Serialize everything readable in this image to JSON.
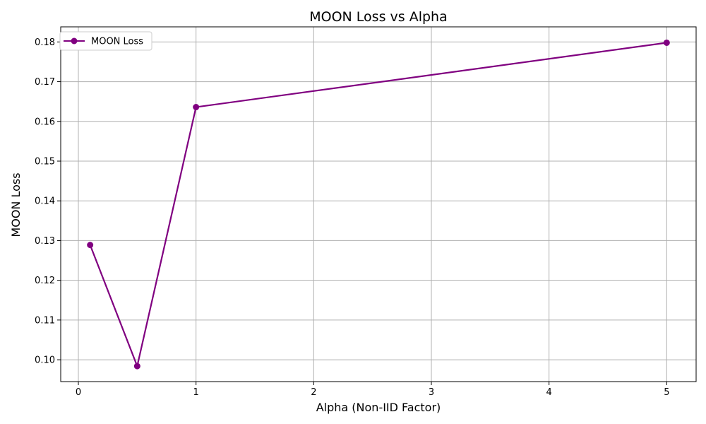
{
  "chart_data": {
    "type": "line",
    "title": "MOON Loss vs Alpha",
    "xlabel": "Alpha (Non-IID Factor)",
    "ylabel": "MOON Loss",
    "xlim": [
      -0.15,
      5.25
    ],
    "ylim": [
      0.0945,
      0.1838
    ],
    "x_ticks": [
      0,
      1,
      2,
      3,
      4,
      5
    ],
    "y_ticks": [
      0.1,
      0.11,
      0.12,
      0.13,
      0.14,
      0.15,
      0.16,
      0.17,
      0.18
    ],
    "grid": true,
    "legend_position": "top-left",
    "series": [
      {
        "name": "MOON Loss",
        "color": "#800080",
        "marker": "circle",
        "x": [
          0.1,
          0.5,
          1,
          5
        ],
        "y": [
          0.1289,
          0.0984,
          0.1636,
          0.1798
        ]
      }
    ]
  }
}
